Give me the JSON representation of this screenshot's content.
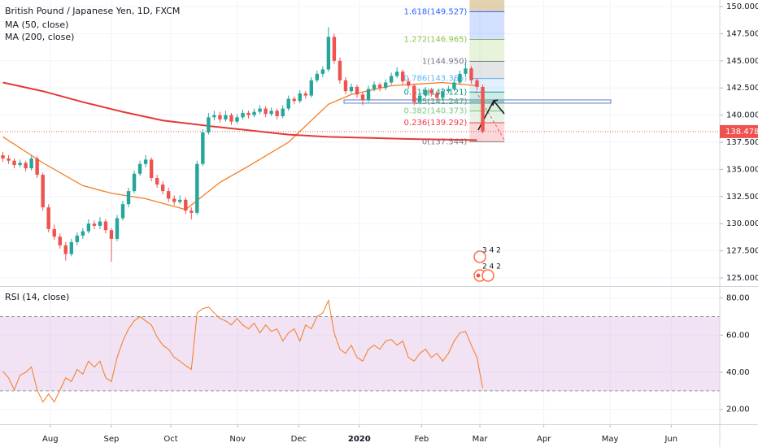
{
  "chart_data": {
    "type": "candlestick",
    "title": "British Pound / Japanese Yen, 1D, FXCM",
    "xlim": [
      -0.5,
      125.5
    ],
    "xticks": [
      {
        "value": 8.3,
        "label": "Aug"
      },
      {
        "value": 19,
        "label": "Sep"
      },
      {
        "value": 29.4,
        "label": "Oct"
      },
      {
        "value": 41.1,
        "label": "Nov"
      },
      {
        "value": 51.8,
        "label": "Dec"
      },
      {
        "value": 62.4,
        "label": "2020"
      },
      {
        "value": 73.3,
        "label": "Feb"
      },
      {
        "value": 83.5,
        "label": "Mar"
      },
      {
        "value": 94.7,
        "label": "Apr"
      },
      {
        "value": 106.3,
        "label": "May"
      },
      {
        "value": 117,
        "label": "Jun"
      }
    ],
    "ylim": [
      124.25,
      150.6
    ],
    "yticks": [
      {
        "value": 125,
        "label": "125.000"
      },
      {
        "value": 127.5,
        "label": "127.500"
      },
      {
        "value": 130,
        "label": "130.000"
      },
      {
        "value": 132.5,
        "label": "132.500"
      },
      {
        "value": 135,
        "label": "135.000"
      },
      {
        "value": 137.5,
        "label": "137.500"
      },
      {
        "value": 140,
        "label": "140.000"
      },
      {
        "value": 142.5,
        "label": "142.500"
      },
      {
        "value": 145,
        "label": "145.000"
      },
      {
        "value": 147.5,
        "label": "147.500"
      },
      {
        "value": 150,
        "label": "150.000"
      }
    ],
    "up_color": "#26a69a",
    "down_color": "#ef5350",
    "candles": [
      [
        136.3,
        136.6,
        135.7,
        136.0
      ],
      [
        136.0,
        136.3,
        135.5,
        135.8
      ],
      [
        135.8,
        136.0,
        135.1,
        135.4
      ],
      [
        135.4,
        135.9,
        135.2,
        135.6
      ],
      [
        135.6,
        135.8,
        134.8,
        135.1
      ],
      [
        135.1,
        136.3,
        134.9,
        136.0
      ],
      [
        136.0,
        136.2,
        134.2,
        134.5
      ],
      [
        134.5,
        134.7,
        131.2,
        131.5
      ],
      [
        131.5,
        131.8,
        129.2,
        129.5
      ],
      [
        129.5,
        129.9,
        128.5,
        128.8
      ],
      [
        128.8,
        129.1,
        127.7,
        128.0
      ],
      [
        128.0,
        128.3,
        126.6,
        127.2
      ],
      [
        127.2,
        128.6,
        127.0,
        128.3
      ],
      [
        128.3,
        129.2,
        128.0,
        128.9
      ],
      [
        128.9,
        129.6,
        128.6,
        129.3
      ],
      [
        129.3,
        130.4,
        129.1,
        130.0
      ],
      [
        130.0,
        130.3,
        129.5,
        129.8
      ],
      [
        129.8,
        130.6,
        129.5,
        130.2
      ],
      [
        130.2,
        130.4,
        129.1,
        129.4
      ],
      [
        129.4,
        129.6,
        126.5,
        128.6
      ],
      [
        128.6,
        130.8,
        128.4,
        130.5
      ],
      [
        130.5,
        132.1,
        130.3,
        131.8
      ],
      [
        131.8,
        133.3,
        131.5,
        133.0
      ],
      [
        133.0,
        134.9,
        132.8,
        134.6
      ],
      [
        134.6,
        135.8,
        134.4,
        135.5
      ],
      [
        135.5,
        136.3,
        135.2,
        135.9
      ],
      [
        135.9,
        136.1,
        133.9,
        134.2
      ],
      [
        134.2,
        134.5,
        133.3,
        133.6
      ],
      [
        133.6,
        133.9,
        132.7,
        133.0
      ],
      [
        133.0,
        133.3,
        132.0,
        132.3
      ],
      [
        132.3,
        132.6,
        131.7,
        132.0
      ],
      [
        132.0,
        132.6,
        131.8,
        132.2
      ],
      [
        132.2,
        132.4,
        130.9,
        131.2
      ],
      [
        131.2,
        131.5,
        130.4,
        131.0
      ],
      [
        131.0,
        135.8,
        130.8,
        135.5
      ],
      [
        135.5,
        138.7,
        135.3,
        138.4
      ],
      [
        138.4,
        140.2,
        138.2,
        139.8
      ],
      [
        139.8,
        140.4,
        139.5,
        140.0
      ],
      [
        140.0,
        140.3,
        139.3,
        139.6
      ],
      [
        139.6,
        140.4,
        139.4,
        140.0
      ],
      [
        140.0,
        140.2,
        139.1,
        139.4
      ],
      [
        139.4,
        140.1,
        139.2,
        139.8
      ],
      [
        139.8,
        140.5,
        139.6,
        140.2
      ],
      [
        140.2,
        140.4,
        139.7,
        140.0
      ],
      [
        140.0,
        140.6,
        139.8,
        140.3
      ],
      [
        140.3,
        140.9,
        140.1,
        140.6
      ],
      [
        140.6,
        140.8,
        139.8,
        140.1
      ],
      [
        140.1,
        140.7,
        139.9,
        140.4
      ],
      [
        140.4,
        140.6,
        139.6,
        139.9
      ],
      [
        139.9,
        140.9,
        139.7,
        140.6
      ],
      [
        140.6,
        141.8,
        140.4,
        141.5
      ],
      [
        141.5,
        141.7,
        141.0,
        141.3
      ],
      [
        141.3,
        142.3,
        141.1,
        142.0
      ],
      [
        142.0,
        142.2,
        141.5,
        141.8
      ],
      [
        141.8,
        143.5,
        141.6,
        143.2
      ],
      [
        143.2,
        144.1,
        143.0,
        143.8
      ],
      [
        143.8,
        144.5,
        143.5,
        144.2
      ],
      [
        144.2,
        148.1,
        144.0,
        147.2
      ],
      [
        147.2,
        147.5,
        144.7,
        145.0
      ],
      [
        145.0,
        145.3,
        142.9,
        143.2
      ],
      [
        143.2,
        143.5,
        141.9,
        142.2
      ],
      [
        142.2,
        142.9,
        142.0,
        142.6
      ],
      [
        142.6,
        142.8,
        141.6,
        141.9
      ],
      [
        141.9,
        142.1,
        140.9,
        141.4
      ],
      [
        141.4,
        142.7,
        141.2,
        142.4
      ],
      [
        142.4,
        143.1,
        142.2,
        142.8
      ],
      [
        142.8,
        143.0,
        142.2,
        142.5
      ],
      [
        142.5,
        143.3,
        142.3,
        143.0
      ],
      [
        143.0,
        143.9,
        142.8,
        143.6
      ],
      [
        143.6,
        144.4,
        143.4,
        144.0
      ],
      [
        144.0,
        144.2,
        142.8,
        143.1
      ],
      [
        143.1,
        143.4,
        142.4,
        142.7
      ],
      [
        142.7,
        142.9,
        140.9,
        141.2
      ],
      [
        141.2,
        142.1,
        141.0,
        141.8
      ],
      [
        141.8,
        142.6,
        141.6,
        142.3
      ],
      [
        142.3,
        142.5,
        141.7,
        142.0
      ],
      [
        142.0,
        142.2,
        141.3,
        141.6
      ],
      [
        141.6,
        142.5,
        141.4,
        142.2
      ],
      [
        142.2,
        142.7,
        142.0,
        142.4
      ],
      [
        142.4,
        143.3,
        142.2,
        143.0
      ],
      [
        143.0,
        144.1,
        142.8,
        143.8
      ],
      [
        143.8,
        144.9,
        143.6,
        144.3
      ],
      [
        144.3,
        144.5,
        142.9,
        143.2
      ],
      [
        143.2,
        143.4,
        142.3,
        142.6
      ],
      [
        142.6,
        142.8,
        138.3,
        138.5
      ]
    ],
    "series": [
      {
        "name": "MA (50, close)",
        "color": "#f57c1f",
        "x": [
          0,
          7,
          14,
          19,
          25,
          32,
          38,
          43,
          50,
          57,
          61,
          68,
          77,
          83
        ],
        "values": [
          138.0,
          135.6,
          133.5,
          132.8,
          132.3,
          131.3,
          133.8,
          135.3,
          137.5,
          141.0,
          141.9,
          142.7,
          143.0,
          142.7
        ]
      },
      {
        "name": "MA (200, close)",
        "color": "#e53935",
        "x": [
          0,
          7,
          14,
          21,
          28,
          36,
          43,
          50,
          57,
          64,
          71,
          83
        ],
        "values": [
          143.0,
          142.2,
          141.2,
          140.3,
          139.5,
          139.0,
          138.6,
          138.2,
          138.0,
          137.9,
          137.8,
          137.7
        ]
      }
    ],
    "last_price": 138.478,
    "last_price_color": "#ef5350",
    "fibonacci": {
      "x": [
        81.7,
        87.8
      ],
      "top_color": "#d6bf8f",
      "levels": [
        {
          "label": "0(137.544)",
          "value": 137.544,
          "color": "#787b86"
        },
        {
          "label": "0.236(139.292)",
          "value": 139.292,
          "color": "#f23645"
        },
        {
          "label": "0.382(140.373)",
          "value": 140.373,
          "color": "#81c784"
        },
        {
          "label": "0.5(141.247)",
          "value": 141.247,
          "color": "#4caf50"
        },
        {
          "label": "0.618(142.121)",
          "value": 142.121,
          "color": "#089981"
        },
        {
          "label": "0.786(143.365)",
          "value": 143.365,
          "color": "#64b5f6"
        },
        {
          "label": "1(144.950)",
          "value": 144.95,
          "color": "#787b86"
        },
        {
          "label": "1.272(146.965)",
          "value": 146.965,
          "color": "#8bc34a"
        },
        {
          "label": "1.618(149.527)",
          "value": 149.527,
          "color": "#2962ff"
        }
      ]
    },
    "annotations": [
      "3 4 2",
      "2 4 2"
    ],
    "rsi": {
      "name": "RSI (14, close)",
      "color": "#f57c1f",
      "band": [
        30,
        70
      ],
      "band_color": "#e1bee7",
      "ylim": [
        12,
        86
      ],
      "yticks": [
        {
          "value": 20,
          "label": "20.00"
        },
        {
          "value": 40,
          "label": "40.00"
        },
        {
          "value": 60,
          "label": "60.00"
        },
        {
          "value": 80,
          "label": "80.00"
        }
      ],
      "values": [
        40.6,
        37,
        30.5,
        38.4,
        40,
        42.8,
        30.5,
        24,
        28.3,
        24,
        30.5,
        37,
        35,
        41.5,
        39,
        46,
        42.8,
        46,
        37,
        35,
        48,
        56.8,
        63.4,
        67.7,
        70,
        67.7,
        65.5,
        59,
        54.6,
        52.4,
        48,
        46,
        43.6,
        41.5,
        72,
        74.3,
        75.2,
        72,
        69,
        67.7,
        65.5,
        69,
        65.5,
        63.4,
        66.4,
        61.2,
        65.5,
        62,
        63.4,
        56.8,
        61.2,
        63.4,
        56.8,
        65.5,
        63.4,
        70,
        72,
        78.7,
        61.2,
        52.4,
        50.2,
        54.6,
        48,
        46,
        52.4,
        54.6,
        52.4,
        56.8,
        57.7,
        54.6,
        56.8,
        48,
        46,
        50.2,
        52.4,
        48,
        50.2,
        46,
        50.2,
        56.8,
        61.2,
        62,
        54.6,
        48,
        31.4
      ]
    }
  }
}
